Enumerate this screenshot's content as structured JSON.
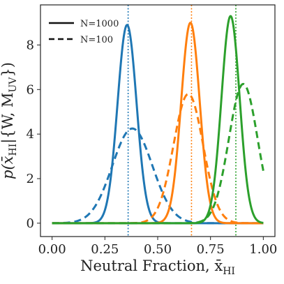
{
  "chart_data": {
    "type": "line",
    "xlabel": "Neutral Fraction, x̄",
    "xlabel_sub": "HI",
    "ylabel": "p(x̄",
    "ylabel_sub1": "HI",
    "ylabel_mid": "|{W, M",
    "ylabel_sub2": "UV",
    "ylabel_end": "})",
    "xlim": [
      0.0,
      1.0
    ],
    "ylim": [
      -0.6,
      9.8
    ],
    "xticks": [
      0.0,
      0.25,
      0.5,
      0.75,
      1.0
    ],
    "xtick_labels": [
      "0.00",
      "0.25",
      "0.50",
      "0.75",
      "1.00"
    ],
    "yticks": [
      0,
      2,
      4,
      6,
      8
    ],
    "ytick_labels": [
      "0",
      "2",
      "4",
      "6",
      "8"
    ],
    "grid": false,
    "legend_position": "top-left",
    "legend": [
      {
        "label": "N=1000",
        "style": "solid"
      },
      {
        "label": "N=100",
        "style": "dashed"
      }
    ],
    "colors": {
      "blue": "#1f77b4",
      "orange": "#ff7f0e",
      "green": "#2ca02c"
    },
    "vlines": [
      {
        "x": 0.36,
        "color": "#1f77b4",
        "style": "dotted"
      },
      {
        "x": 0.66,
        "color": "#ff7f0e",
        "style": "dotted"
      },
      {
        "x": 0.87,
        "color": "#2ca02c",
        "style": "dotted"
      }
    ],
    "series": [
      {
        "color": "#1f77b4",
        "style": "solid",
        "mean": 0.355,
        "sigma": 0.045,
        "peak": 8.9
      },
      {
        "color": "#1f77b4",
        "style": "dashed",
        "mean": 0.38,
        "sigma": 0.095,
        "peak": 4.25
      },
      {
        "color": "#ff7f0e",
        "style": "solid",
        "mean": 0.655,
        "sigma": 0.044,
        "peak": 9.0
      },
      {
        "color": "#ff7f0e",
        "style": "dashed",
        "mean": 0.645,
        "sigma": 0.07,
        "peak": 5.8
      },
      {
        "color": "#2ca02c",
        "style": "solid",
        "mean": 0.845,
        "sigma": 0.043,
        "peak": 9.3
      },
      {
        "color": "#2ca02c",
        "style": "dashed",
        "mean": 0.905,
        "sigma": 0.068,
        "peak": 6.25
      }
    ]
  }
}
